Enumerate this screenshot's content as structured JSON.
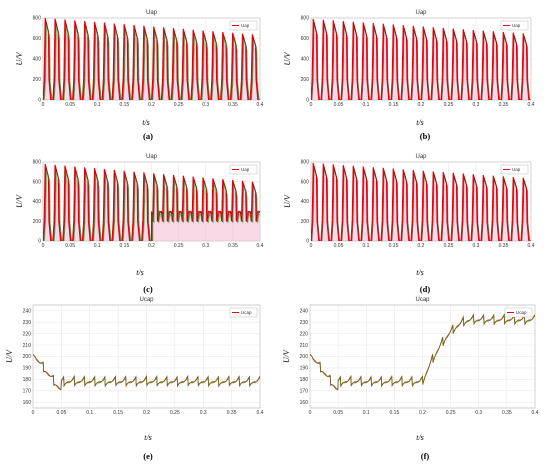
{
  "colors": {
    "red": "#e8000b",
    "dark_red": "#7a1e0f",
    "green": "#2ea82e",
    "olive": "#7a5a1a",
    "fill": "#f4b8d6",
    "grid": "#dedede"
  },
  "chart_data": [
    {
      "label": "(a)",
      "title": "Uap",
      "type": "line",
      "xlabel": "t/s",
      "ylabel": "U/V",
      "xlim": [
        0,
        0.4
      ],
      "ylim": [
        0,
        800
      ],
      "xticks": [
        "0",
        "0.05",
        "0.1",
        "0.15",
        "0.2",
        "0.25",
        "0.3",
        "0.35",
        "0.4"
      ],
      "yticks": [
        "0",
        "200",
        "400",
        "600",
        "800"
      ],
      "grid": true,
      "legend_position": "top-right",
      "series": [
        {
          "name": "Uap",
          "pulse_high_start": 800,
          "pulse_high_end": 640,
          "pulse_mid": 200,
          "pulse_low": 0,
          "cycles": 22
        }
      ]
    },
    {
      "label": "(b)",
      "title": "Uap",
      "type": "line",
      "xlabel": "t/s",
      "ylabel": "U/V",
      "xlim": [
        0,
        0.4
      ],
      "ylim": [
        0,
        800
      ],
      "xticks": [
        "0",
        "0.05",
        "0.1",
        "0.15",
        "0.2",
        "0.25",
        "0.3",
        "0.35",
        "0.4"
      ],
      "yticks": [
        "0",
        "200",
        "400",
        "600",
        "800"
      ],
      "grid": true,
      "legend_position": "top-right",
      "series": [
        {
          "name": "Uap",
          "pulse_high_start": 790,
          "pulse_high_end": 650,
          "pulse_mid": 200,
          "pulse_low": 0,
          "cycles": 22
        }
      ]
    },
    {
      "label": "(c)",
      "title": "Uap",
      "type": "line",
      "xlabel": "t/s",
      "ylabel": "U/V",
      "xlim": [
        0,
        0.4
      ],
      "ylim": [
        0,
        800
      ],
      "xticks": [
        "0",
        "0.05",
        "0.1",
        "0.15",
        "0.2",
        "0.25",
        "0.3",
        "0.35",
        "0.4"
      ],
      "yticks": [
        "0",
        "200",
        "400",
        "600",
        "800"
      ],
      "grid": true,
      "legend_position": "top-right",
      "series": [
        {
          "name": "Uap",
          "pulse_high_start": 780,
          "pulse_high_end": 600,
          "pulse_mid": 200,
          "pulse_low": 0,
          "cycles": 22,
          "step_at": 0.2,
          "low_after_step": 300
        }
      ]
    },
    {
      "label": "(d)",
      "title": "Uap",
      "type": "line",
      "xlabel": "t/s",
      "ylabel": "U/V",
      "xlim": [
        0,
        0.4
      ],
      "ylim": [
        0,
        800
      ],
      "xticks": [
        "0",
        "0.05",
        "0.1",
        "0.15",
        "0.2",
        "0.25",
        "0.3",
        "0.35",
        "0.4"
      ],
      "yticks": [
        "0",
        "200",
        "400",
        "600",
        "800"
      ],
      "grid": true,
      "legend_position": "top-right",
      "series": [
        {
          "name": "Uap",
          "pulse_high_start": 790,
          "pulse_high_end": 640,
          "pulse_mid": 200,
          "pulse_low": 0,
          "cycles": 22
        }
      ]
    },
    {
      "label": "(e)",
      "title": "Ucap",
      "type": "line",
      "xlabel": "t/s",
      "ylabel": "U/V",
      "xlim": [
        0,
        0.4
      ],
      "ylim": [
        155,
        245
      ],
      "xticks": [
        "0",
        "0.05",
        "0.1",
        "0.15",
        "0.2",
        "0.25",
        "0.3",
        "0.35",
        "0.4"
      ],
      "yticks": [
        "160",
        "170",
        "180",
        "190",
        "200",
        "210",
        "220",
        "230",
        "240"
      ],
      "grid": true,
      "legend_position": "top-right",
      "series": [
        {
          "name": "Ucap",
          "start": 202,
          "dip_min": 164,
          "steady_mean": 178,
          "ripple": 8,
          "cycles": 22
        }
      ]
    },
    {
      "label": "(f)",
      "title": "Ucap",
      "type": "line",
      "xlabel": "t/s",
      "ylabel": "U/V",
      "xlim": [
        0,
        0.4
      ],
      "ylim": [
        155,
        245
      ],
      "xticks": [
        "0",
        "0.05",
        "0.1",
        "0.15",
        "0.2",
        "0.25",
        "0.3",
        "0.35",
        "0.4"
      ],
      "yticks": [
        "160",
        "170",
        "180",
        "190",
        "200",
        "210",
        "220",
        "230",
        "240"
      ],
      "grid": true,
      "legend_position": "top-right",
      "series": [
        {
          "name": "Ucap",
          "start": 202,
          "dip_min": 164,
          "steady_mean": 178,
          "ripple": 8,
          "cycles": 22,
          "step_at": 0.2,
          "final_mean": 232
        }
      ]
    }
  ]
}
